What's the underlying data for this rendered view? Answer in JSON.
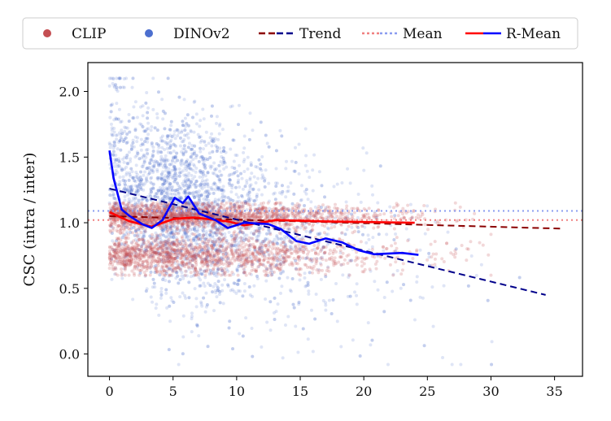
{
  "chart_data": {
    "type": "scatter",
    "title": "",
    "xlabel": "",
    "ylabel": "CSC (intra / inter)",
    "xlim": [
      -1.7,
      37.2
    ],
    "ylim": [
      -0.17,
      2.22
    ],
    "xticks": [
      "0",
      "5",
      "10",
      "15",
      "20",
      "25",
      "30",
      "35"
    ],
    "yticks": [
      "0.0",
      "0.5",
      "1.0",
      "1.5",
      "2.0"
    ],
    "grid": false,
    "legend_placement": "top-center, above plot",
    "legend": [
      {
        "label": "CLIP",
        "kind": "marker",
        "color": "#c44e52"
      },
      {
        "label": "DINOv2",
        "kind": "marker",
        "color": "#4c6fcf"
      },
      {
        "label": "Trend",
        "kind": "dashed",
        "colors": [
          "#8b0000",
          "#00008b"
        ]
      },
      {
        "label": "Mean",
        "kind": "dotted",
        "colors": [
          "#f08080",
          "#8a9cf0"
        ]
      },
      {
        "label": "R-Mean",
        "kind": "solid",
        "colors": [
          "#ff0000",
          "#0000ff"
        ]
      }
    ],
    "series": [
      {
        "name": "CLIP",
        "color": "#c44e52",
        "points_note": "dense scatter, x ≈ 0–28, y mostly 0.65–1.15",
        "trend": {
          "x": [
            0,
            35.5
          ],
          "y": [
            1.05,
            0.955
          ],
          "color": "#8b0000"
        },
        "mean": {
          "y": 1.02,
          "color": "#f08080"
        },
        "r_mean": {
          "color": "#ff0000",
          "x": [
            0,
            1.6,
            3.3,
            5.1,
            6.7,
            9.3,
            10.6,
            13.1,
            17,
            24
          ],
          "y": [
            1.08,
            1.01,
            0.97,
            1.03,
            1.04,
            1.01,
            0.98,
            1.02,
            1.01,
            1.0
          ]
        }
      },
      {
        "name": "DINOv2",
        "color": "#4c6fcf",
        "points_note": "sparse-to-dense scatter, x ≈ 0–35, y ≈ -0.1–2.1",
        "trend": {
          "x": [
            0,
            34.3
          ],
          "y": [
            1.26,
            0.45
          ],
          "color": "#00008b"
        },
        "mean": {
          "y": 1.09,
          "color": "#8a9cf0"
        },
        "r_mean": {
          "color": "#0000ff",
          "x": [
            0,
            0.32,
            0.96,
            1.6,
            2.56,
            3.33,
            4.17,
            5.13,
            5.77,
            6.2,
            7.05,
            8.33,
            9.3,
            10.6,
            12.5,
            13.5,
            14.7,
            15.7,
            17,
            18.3,
            19.6,
            20.8,
            23,
            24.3
          ],
          "y": [
            1.55,
            1.34,
            1.1,
            1.05,
            0.99,
            0.96,
            1.02,
            1.19,
            1.15,
            1.2,
            1.07,
            1.02,
            0.96,
            1.0,
            0.99,
            0.95,
            0.86,
            0.84,
            0.88,
            0.85,
            0.79,
            0.76,
            0.77,
            0.755
          ]
        }
      }
    ]
  }
}
